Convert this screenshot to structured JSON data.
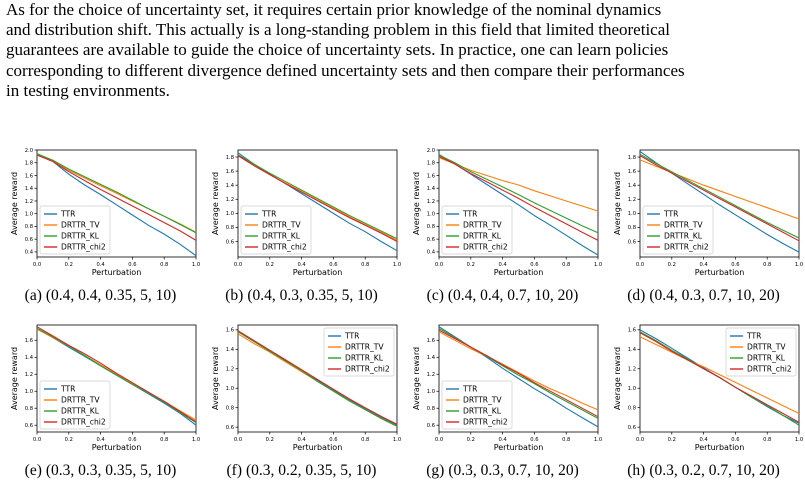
{
  "paragraph": {
    "lines": [
      "As for the choice of uncertainty set, it requires certain prior knowledge of the nominal dynamics",
      "and distribution shift. This actually is a long-standing problem in this field that limited theoretical",
      "guarantees are available to guide the choice of uncertainty sets. In practice, one can learn policies",
      "corresponding to different divergence defined uncertainty sets and then compare their performances",
      "in testing environments."
    ]
  },
  "colors": {
    "TTR": "#1f77b4",
    "DRTTR_TV": "#ff7f0e",
    "DRTTR_KL": "#2ca02c",
    "DRTTR_chi2": "#d62728"
  },
  "chart_data": [
    {
      "type": "line",
      "label": "(a)",
      "params": "(0.4, 0.4, 0.35, 5, 10)",
      "xlabel": "Perturbation",
      "ylabel": "Average reward",
      "xlim": [
        0.0,
        1.0
      ],
      "ylim": [
        0.32,
        2.0
      ],
      "xticks": [
        "0.0",
        "0.2",
        "0.4",
        "0.6",
        "0.8",
        "1.0"
      ],
      "yticks": [
        "0.4",
        "0.6",
        "0.8",
        "1.0",
        "1.2",
        "1.4",
        "1.6",
        "1.8",
        "2.0"
      ],
      "legend_position": "lower-left",
      "x": [
        0.0,
        0.1,
        0.2,
        0.3,
        0.4,
        0.5,
        0.6,
        0.7,
        0.8,
        0.9,
        1.0
      ],
      "series": [
        {
          "name": "TTR",
          "values": [
            1.93,
            1.82,
            1.62,
            1.45,
            1.3,
            1.14,
            0.98,
            0.82,
            0.68,
            0.52,
            0.34
          ]
        },
        {
          "name": "DRTTR_TV",
          "values": [
            1.94,
            1.83,
            1.68,
            1.56,
            1.44,
            1.32,
            1.2,
            1.08,
            0.96,
            0.84,
            0.71
          ]
        },
        {
          "name": "DRTTR_KL",
          "values": [
            1.94,
            1.84,
            1.7,
            1.58,
            1.46,
            1.34,
            1.21,
            1.08,
            0.96,
            0.83,
            0.7
          ]
        },
        {
          "name": "DRTTR_chi2",
          "values": [
            1.92,
            1.82,
            1.66,
            1.52,
            1.38,
            1.25,
            1.12,
            0.99,
            0.86,
            0.73,
            0.58
          ]
        }
      ]
    },
    {
      "type": "line",
      "label": "(b)",
      "params": "(0.4, 0.3, 0.35, 5, 10)",
      "xlabel": "Perturbation",
      "ylabel": "Average reward",
      "xlim": [
        0.0,
        1.0
      ],
      "ylim": [
        0.38,
        1.9
      ],
      "xticks": [
        "0.0",
        "0.2",
        "0.4",
        "0.6",
        "0.8",
        "1.0"
      ],
      "yticks": [
        "0.6",
        "0.8",
        "1.0",
        "1.2",
        "1.4",
        "1.6",
        "1.8"
      ],
      "legend_position": "lower-left",
      "x": [
        0.0,
        0.1,
        0.2,
        0.3,
        0.4,
        0.5,
        0.6,
        0.7,
        0.8,
        0.9,
        1.0
      ],
      "series": [
        {
          "name": "TTR",
          "values": [
            1.86,
            1.7,
            1.56,
            1.42,
            1.28,
            1.14,
            1.0,
            0.86,
            0.74,
            0.6,
            0.47
          ]
        },
        {
          "name": "DRTTR_TV",
          "values": [
            1.82,
            1.68,
            1.55,
            1.43,
            1.31,
            1.19,
            1.07,
            0.95,
            0.84,
            0.73,
            0.62
          ]
        },
        {
          "name": "DRTTR_KL",
          "values": [
            1.83,
            1.7,
            1.57,
            1.45,
            1.33,
            1.21,
            1.09,
            0.97,
            0.86,
            0.75,
            0.64
          ]
        },
        {
          "name": "DRTTR_chi2",
          "values": [
            1.82,
            1.68,
            1.55,
            1.42,
            1.3,
            1.18,
            1.06,
            0.94,
            0.83,
            0.72,
            0.6
          ]
        }
      ]
    },
    {
      "type": "line",
      "label": "(c)",
      "params": "(0.4, 0.4, 0.7, 10, 20)",
      "xlabel": "Perturbation",
      "ylabel": "Average reward",
      "xlim": [
        0.0,
        1.0
      ],
      "ylim": [
        0.32,
        2.0
      ],
      "xticks": [
        "0.0",
        "0.2",
        "0.4",
        "0.6",
        "0.8",
        "1.0"
      ],
      "yticks": [
        "0.4",
        "0.6",
        "0.8",
        "1.0",
        "1.2",
        "1.4",
        "1.6",
        "1.8",
        "2.0"
      ],
      "legend_position": "lower-left",
      "x": [
        0.0,
        0.1,
        0.2,
        0.3,
        0.4,
        0.5,
        0.6,
        0.7,
        0.8,
        0.9,
        1.0
      ],
      "series": [
        {
          "name": "TTR",
          "values": [
            1.93,
            1.78,
            1.62,
            1.46,
            1.3,
            1.14,
            0.97,
            0.82,
            0.66,
            0.5,
            0.35
          ]
        },
        {
          "name": "DRTTR_TV",
          "values": [
            1.88,
            1.78,
            1.68,
            1.6,
            1.52,
            1.45,
            1.36,
            1.28,
            1.2,
            1.12,
            1.04
          ]
        },
        {
          "name": "DRTTR_KL",
          "values": [
            1.92,
            1.8,
            1.66,
            1.54,
            1.42,
            1.3,
            1.17,
            1.05,
            0.93,
            0.81,
            0.7
          ]
        },
        {
          "name": "DRTTR_chi2",
          "values": [
            1.9,
            1.78,
            1.63,
            1.5,
            1.37,
            1.24,
            1.1,
            0.97,
            0.84,
            0.71,
            0.58
          ]
        }
      ]
    },
    {
      "type": "line",
      "label": "(d)",
      "params": "(0.4, 0.3, 0.7, 10, 20)",
      "xlabel": "Perturbation",
      "ylabel": "Average reward",
      "xlim": [
        0.0,
        1.0
      ],
      "ylim": [
        0.38,
        1.9
      ],
      "xticks": [
        "0.0",
        "0.2",
        "0.4",
        "0.6",
        "0.8",
        "1.0"
      ],
      "yticks": [
        "0.6",
        "0.8",
        "1.0",
        "1.2",
        "1.4",
        "1.6",
        "1.8"
      ],
      "legend_position": "lower-left",
      "x": [
        0.0,
        0.1,
        0.2,
        0.3,
        0.4,
        0.5,
        0.6,
        0.7,
        0.8,
        0.9,
        1.0
      ],
      "series": [
        {
          "name": "TTR",
          "values": [
            1.88,
            1.72,
            1.57,
            1.42,
            1.27,
            1.12,
            0.98,
            0.84,
            0.7,
            0.57,
            0.45
          ]
        },
        {
          "name": "DRTTR_TV",
          "values": [
            1.76,
            1.67,
            1.58,
            1.49,
            1.4,
            1.32,
            1.24,
            1.16,
            1.08,
            1.0,
            0.92
          ]
        },
        {
          "name": "DRTTR_KL",
          "values": [
            1.84,
            1.71,
            1.59,
            1.47,
            1.35,
            1.23,
            1.11,
            0.99,
            0.87,
            0.76,
            0.65
          ]
        },
        {
          "name": "DRTTR_chi2",
          "values": [
            1.82,
            1.69,
            1.57,
            1.45,
            1.33,
            1.21,
            1.09,
            0.97,
            0.85,
            0.73,
            0.61
          ]
        }
      ]
    },
    {
      "type": "line",
      "label": "(e)",
      "params": "(0.3, 0.3, 0.35, 5, 10)",
      "xlabel": "Perturbation",
      "ylabel": "Average reward",
      "xlim": [
        0.0,
        1.0
      ],
      "ylim": [
        0.52,
        1.78
      ],
      "xticks": [
        "0.0",
        "0.2",
        "0.4",
        "0.6",
        "0.8",
        "1.0"
      ],
      "yticks": [
        "0.6",
        "0.8",
        "1.0",
        "1.2",
        "1.4",
        "1.6"
      ],
      "legend_position": "lower-left",
      "x": [
        0.0,
        0.1,
        0.2,
        0.3,
        0.4,
        0.5,
        0.6,
        0.7,
        0.8,
        0.9,
        1.0
      ],
      "series": [
        {
          "name": "TTR",
          "values": [
            1.74,
            1.63,
            1.52,
            1.41,
            1.3,
            1.19,
            1.08,
            0.97,
            0.86,
            0.74,
            0.6
          ]
        },
        {
          "name": "DRTTR_TV",
          "values": [
            1.73,
            1.63,
            1.53,
            1.42,
            1.31,
            1.2,
            1.09,
            0.98,
            0.88,
            0.77,
            0.66
          ]
        },
        {
          "name": "DRTTR_KL",
          "values": [
            1.74,
            1.64,
            1.53,
            1.42,
            1.3,
            1.19,
            1.08,
            0.98,
            0.87,
            0.75,
            0.63
          ]
        },
        {
          "name": "DRTTR_chi2",
          "values": [
            1.76,
            1.65,
            1.54,
            1.44,
            1.33,
            1.21,
            1.1,
            0.99,
            0.88,
            0.76,
            0.64
          ]
        }
      ]
    },
    {
      "type": "line",
      "label": "(f)",
      "params": "(0.3, 0.2, 0.35, 5, 10)",
      "xlabel": "Perturbation",
      "ylabel": "Average reward",
      "xlim": [
        0.0,
        1.0
      ],
      "ylim": [
        0.55,
        1.65
      ],
      "xticks": [
        "0.0",
        "0.2",
        "0.4",
        "0.6",
        "0.8",
        "1.0"
      ],
      "yticks": [
        "0.6",
        "0.8",
        "1.0",
        "1.2",
        "1.4",
        "1.6"
      ],
      "legend_position": "upper-right",
      "x": [
        0.0,
        0.1,
        0.2,
        0.3,
        0.4,
        0.5,
        0.6,
        0.7,
        0.8,
        0.9,
        1.0
      ],
      "series": [
        {
          "name": "TTR",
          "values": [
            1.59,
            1.49,
            1.39,
            1.29,
            1.18,
            1.08,
            0.98,
            0.88,
            0.79,
            0.7,
            0.62
          ]
        },
        {
          "name": "DRTTR_TV",
          "values": [
            1.56,
            1.46,
            1.37,
            1.27,
            1.17,
            1.07,
            0.97,
            0.87,
            0.78,
            0.69,
            0.61
          ]
        },
        {
          "name": "DRTTR_KL",
          "values": [
            1.58,
            1.48,
            1.38,
            1.28,
            1.18,
            1.07,
            0.97,
            0.87,
            0.78,
            0.69,
            0.61
          ]
        },
        {
          "name": "DRTTR_chi2",
          "values": [
            1.59,
            1.49,
            1.39,
            1.29,
            1.19,
            1.09,
            0.99,
            0.89,
            0.8,
            0.71,
            0.63
          ]
        }
      ]
    },
    {
      "type": "line",
      "label": "(g)",
      "params": "(0.3, 0.3, 0.7, 10, 20)",
      "xlabel": "Perturbation",
      "ylabel": "Average reward",
      "xlim": [
        0.0,
        1.0
      ],
      "ylim": [
        0.52,
        1.78
      ],
      "xticks": [
        "0.0",
        "0.2",
        "0.4",
        "0.6",
        "0.8",
        "1.0"
      ],
      "yticks": [
        "0.6",
        "0.8",
        "1.0",
        "1.2",
        "1.4",
        "1.6"
      ],
      "legend_position": "lower-left",
      "x": [
        0.0,
        0.1,
        0.2,
        0.3,
        0.4,
        0.5,
        0.6,
        0.7,
        0.8,
        0.9,
        1.0
      ],
      "series": [
        {
          "name": "TTR",
          "values": [
            1.76,
            1.64,
            1.52,
            1.4,
            1.27,
            1.15,
            1.03,
            0.92,
            0.8,
            0.69,
            0.58
          ]
        },
        {
          "name": "DRTTR_TV",
          "values": [
            1.7,
            1.6,
            1.5,
            1.41,
            1.32,
            1.22,
            1.12,
            1.03,
            0.95,
            0.86,
            0.78
          ]
        },
        {
          "name": "DRTTR_KL",
          "values": [
            1.74,
            1.63,
            1.52,
            1.41,
            1.3,
            1.19,
            1.09,
            0.98,
            0.88,
            0.78,
            0.68
          ]
        },
        {
          "name": "DRTTR_chi2",
          "values": [
            1.72,
            1.62,
            1.52,
            1.42,
            1.31,
            1.21,
            1.1,
            1.0,
            0.9,
            0.8,
            0.7
          ]
        }
      ]
    },
    {
      "type": "line",
      "label": "(h)",
      "params": "(0.3, 0.2, 0.7, 10, 20)",
      "xlabel": "Perturbation",
      "ylabel": "Average reward",
      "xlim": [
        0.0,
        1.0
      ],
      "ylim": [
        0.55,
        1.65
      ],
      "xticks": [
        "0.0",
        "0.2",
        "0.4",
        "0.6",
        "0.8",
        "1.0"
      ],
      "yticks": [
        "0.6",
        "0.8",
        "1.0",
        "1.2",
        "1.4",
        "1.6"
      ],
      "legend_position": "upper-right",
      "x": [
        0.0,
        0.1,
        0.2,
        0.3,
        0.4,
        0.5,
        0.6,
        0.7,
        0.8,
        0.9,
        1.0
      ],
      "series": [
        {
          "name": "TTR",
          "values": [
            1.6,
            1.51,
            1.41,
            1.31,
            1.21,
            1.11,
            1.01,
            0.91,
            0.81,
            0.72,
            0.64
          ]
        },
        {
          "name": "DRTTR_TV",
          "values": [
            1.53,
            1.45,
            1.37,
            1.29,
            1.22,
            1.14,
            1.06,
            0.98,
            0.9,
            0.82,
            0.74
          ]
        },
        {
          "name": "DRTTR_KL",
          "values": [
            1.58,
            1.49,
            1.39,
            1.3,
            1.2,
            1.11,
            1.01,
            0.91,
            0.82,
            0.72,
            0.62
          ]
        },
        {
          "name": "DRTTR_chi2",
          "values": [
            1.57,
            1.48,
            1.38,
            1.29,
            1.2,
            1.11,
            1.01,
            0.92,
            0.83,
            0.74,
            0.65
          ]
        }
      ]
    }
  ]
}
